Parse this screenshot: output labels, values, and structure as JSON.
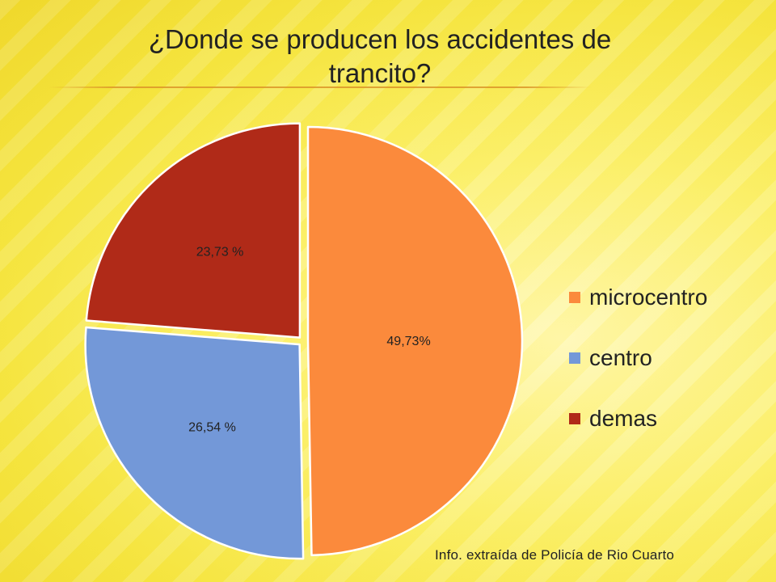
{
  "slide": {
    "title_line1": "¿Donde se producen los accidentes de",
    "title_line2": "trancito?",
    "source": "Info. extraída de Policía de Rio Cuarto"
  },
  "chart_data": {
    "type": "pie",
    "title": "¿Donde se producen los accidentes de trancito?",
    "categories": [
      "microcentro",
      "centro",
      "demas"
    ],
    "values": [
      49.73,
      26.54,
      23.73
    ],
    "data_labels": [
      "49,73%",
      "26,54 %",
      "23,73 %"
    ],
    "colors": [
      "#fb8a3c",
      "#7398d8",
      "#b02a18"
    ],
    "legend_position": "right",
    "exploded": true,
    "start_angle": "top, clockwise"
  },
  "legend": {
    "items": [
      {
        "label": "microcentro",
        "color": "#fb8a3c"
      },
      {
        "label": "centro",
        "color": "#7398d8"
      },
      {
        "label": "demas",
        "color": "#b02a18"
      }
    ]
  }
}
